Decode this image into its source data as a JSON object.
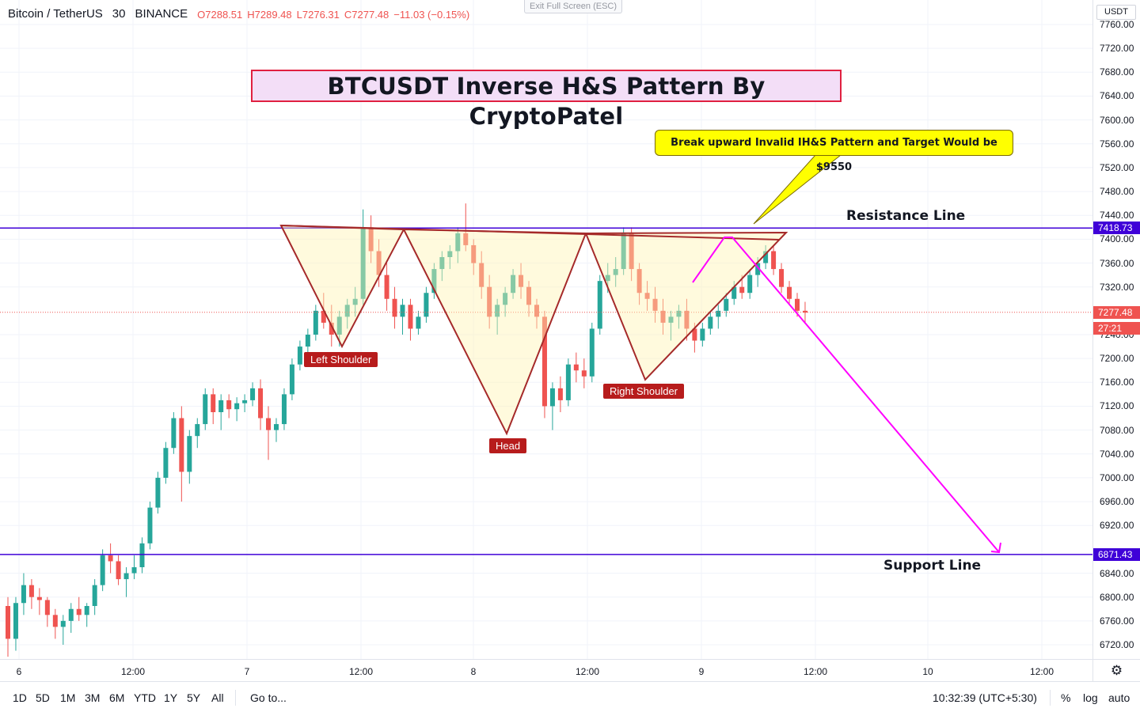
{
  "legend": {
    "symbol": "Bitcoin / TetherUS",
    "interval": "30",
    "exchange": "BINANCE",
    "open": "O7288.51",
    "high": "H7289.48",
    "low": "L7276.31",
    "close": "C7277.48",
    "change": "−11.03 (−0.15%)"
  },
  "exit_fullscreen": "Exit Full Screen (ESC)",
  "title": "BTCUSDT Inverse H&S Pattern By CryptoPatel",
  "callout": "Break upward Invalid IH&S Pattern and Target Would be $9550",
  "labels": {
    "resistance": "Resistance Line",
    "support": "Support  Line",
    "left_shoulder": "Left Shoulder",
    "head": "Head",
    "right_shoulder": "Right Shoulder"
  },
  "price_axis": {
    "currency": "USDT",
    "ticks": [
      "7760.00",
      "7720.00",
      "7680.00",
      "7640.00",
      "7600.00",
      "7560.00",
      "7520.00",
      "7480.00",
      "7440.00",
      "7400.00",
      "7360.00",
      "7320.00",
      "7240.00",
      "7200.00",
      "7160.00",
      "7120.00",
      "7080.00",
      "7040.00",
      "7000.00",
      "6960.00",
      "6920.00",
      "6840.00",
      "6800.00",
      "6760.00",
      "6720.00"
    ],
    "resistance_tag": "7418.73",
    "support_tag": "6871.43",
    "last_price_tag": "7277.48",
    "countdown_tag": "27:21"
  },
  "time_axis": {
    "labels": [
      "6",
      "12:00",
      "7",
      "12:00",
      "8",
      "12:00",
      "9",
      "12:00",
      "10",
      "12:00"
    ]
  },
  "bottom_bar": {
    "ranges": [
      "1D",
      "5D",
      "1M",
      "3M",
      "6M",
      "YTD",
      "1Y",
      "5Y",
      "All"
    ],
    "goto": "Go to...",
    "clock": "10:32:39 (UTC+5:30)",
    "percent": "%",
    "log": "log",
    "auto": "auto"
  },
  "colors": {
    "up": "#26a69a",
    "down": "#ef5350",
    "level_line": "#3f00d8",
    "pattern": "#a52a2a",
    "projection": "#ff00ff",
    "label_bg": "#b71c1c",
    "callout": "#ffff00"
  },
  "chart_data": {
    "type": "candlestick",
    "symbol": "BTCUSDT",
    "interval_minutes": 30,
    "levels": {
      "resistance": 7418.73,
      "support": 6871.43,
      "last": 7277.48
    },
    "ylim": [
      6700,
      7780
    ],
    "candles": [
      [
        6785,
        6800,
        6700,
        6730
      ],
      [
        6730,
        6800,
        6710,
        6790
      ],
      [
        6790,
        6840,
        6770,
        6820
      ],
      [
        6820,
        6830,
        6780,
        6800
      ],
      [
        6800,
        6815,
        6770,
        6795
      ],
      [
        6795,
        6800,
        6750,
        6770
      ],
      [
        6770,
        6780,
        6730,
        6750
      ],
      [
        6750,
        6770,
        6720,
        6760
      ],
      [
        6760,
        6790,
        6740,
        6780
      ],
      [
        6780,
        6800,
        6760,
        6770
      ],
      [
        6770,
        6790,
        6750,
        6785
      ],
      [
        6785,
        6830,
        6770,
        6820
      ],
      [
        6820,
        6880,
        6810,
        6870
      ],
      [
        6870,
        6890,
        6840,
        6860
      ],
      [
        6860,
        6870,
        6820,
        6830
      ],
      [
        6830,
        6850,
        6800,
        6840
      ],
      [
        6840,
        6870,
        6830,
        6850
      ],
      [
        6850,
        6900,
        6840,
        6890
      ],
      [
        6890,
        6960,
        6880,
        6950
      ],
      [
        6950,
        7010,
        6940,
        7000
      ],
      [
        7000,
        7060,
        6990,
        7050
      ],
      [
        7050,
        7110,
        7040,
        7100
      ],
      [
        7100,
        7120,
        6960,
        7010
      ],
      [
        7010,
        7080,
        6990,
        7070
      ],
      [
        7070,
        7100,
        7050,
        7090
      ],
      [
        7090,
        7150,
        7080,
        7140
      ],
      [
        7140,
        7150,
        7090,
        7110
      ],
      [
        7110,
        7140,
        7080,
        7130
      ],
      [
        7130,
        7140,
        7100,
        7115
      ],
      [
        7115,
        7135,
        7095,
        7125
      ],
      [
        7125,
        7140,
        7110,
        7130
      ],
      [
        7130,
        7160,
        7120,
        7150
      ],
      [
        7150,
        7165,
        7080,
        7100
      ],
      [
        7100,
        7120,
        7030,
        7080
      ],
      [
        7080,
        7100,
        7060,
        7090
      ],
      [
        7090,
        7150,
        7080,
        7140
      ],
      [
        7140,
        7200,
        7130,
        7190
      ],
      [
        7190,
        7230,
        7180,
        7220
      ],
      [
        7220,
        7250,
        7190,
        7240
      ],
      [
        7240,
        7290,
        7230,
        7280
      ],
      [
        7280,
        7310,
        7250,
        7260
      ],
      [
        7260,
        7290,
        7220,
        7240
      ],
      [
        7240,
        7280,
        7220,
        7270
      ],
      [
        7270,
        7300,
        7250,
        7290
      ],
      [
        7290,
        7320,
        7270,
        7300
      ],
      [
        7300,
        7450,
        7290,
        7420
      ],
      [
        7420,
        7440,
        7360,
        7380
      ],
      [
        7380,
        7400,
        7320,
        7340
      ],
      [
        7340,
        7360,
        7280,
        7300
      ],
      [
        7300,
        7320,
        7250,
        7270
      ],
      [
        7270,
        7300,
        7240,
        7290
      ],
      [
        7290,
        7300,
        7230,
        7250
      ],
      [
        7250,
        7280,
        7240,
        7270
      ],
      [
        7270,
        7320,
        7260,
        7310
      ],
      [
        7310,
        7360,
        7300,
        7350
      ],
      [
        7350,
        7380,
        7330,
        7370
      ],
      [
        7370,
        7390,
        7350,
        7380
      ],
      [
        7380,
        7420,
        7360,
        7410
      ],
      [
        7410,
        7460,
        7380,
        7390
      ],
      [
        7390,
        7400,
        7340,
        7360
      ],
      [
        7360,
        7380,
        7300,
        7320
      ],
      [
        7320,
        7340,
        7250,
        7270
      ],
      [
        7270,
        7300,
        7240,
        7290
      ],
      [
        7290,
        7320,
        7270,
        7310
      ],
      [
        7310,
        7350,
        7300,
        7340
      ],
      [
        7340,
        7360,
        7300,
        7320
      ],
      [
        7320,
        7330,
        7270,
        7290
      ],
      [
        7290,
        7300,
        7250,
        7270
      ],
      [
        7270,
        7280,
        7100,
        7120
      ],
      [
        7120,
        7160,
        7080,
        7150
      ],
      [
        7150,
        7170,
        7110,
        7130
      ],
      [
        7130,
        7200,
        7120,
        7190
      ],
      [
        7190,
        7210,
        7160,
        7180
      ],
      [
        7180,
        7200,
        7150,
        7170
      ],
      [
        7170,
        7260,
        7160,
        7250
      ],
      [
        7250,
        7340,
        7240,
        7330
      ],
      [
        7330,
        7360,
        7310,
        7340
      ],
      [
        7340,
        7370,
        7320,
        7350
      ],
      [
        7350,
        7420,
        7340,
        7410
      ],
      [
        7410,
        7420,
        7330,
        7350
      ],
      [
        7350,
        7360,
        7290,
        7310
      ],
      [
        7310,
        7330,
        7280,
        7300
      ],
      [
        7300,
        7320,
        7260,
        7280
      ],
      [
        7280,
        7300,
        7240,
        7260
      ],
      [
        7260,
        7280,
        7230,
        7270
      ],
      [
        7270,
        7290,
        7250,
        7280
      ],
      [
        7280,
        7300,
        7230,
        7250
      ],
      [
        7250,
        7260,
        7210,
        7230
      ],
      [
        7230,
        7260,
        7220,
        7250
      ],
      [
        7250,
        7280,
        7240,
        7270
      ],
      [
        7270,
        7290,
        7250,
        7280
      ],
      [
        7280,
        7310,
        7270,
        7300
      ],
      [
        7300,
        7330,
        7290,
        7320
      ],
      [
        7320,
        7340,
        7300,
        7310
      ],
      [
        7310,
        7350,
        7300,
        7340
      ],
      [
        7340,
        7370,
        7320,
        7360
      ],
      [
        7360,
        7390,
        7350,
        7380
      ],
      [
        7380,
        7390,
        7340,
        7350
      ],
      [
        7350,
        7360,
        7310,
        7320
      ],
      [
        7320,
        7330,
        7290,
        7300
      ],
      [
        7300,
        7310,
        7270,
        7280
      ],
      [
        7280,
        7295,
        7260,
        7277
      ]
    ]
  }
}
